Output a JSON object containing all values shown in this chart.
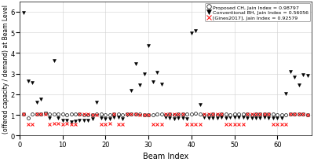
{
  "title": "",
  "xlabel": "Beam Index",
  "ylabel": "(offered capacity / demand) at Beam Level",
  "xlim": [
    0,
    68
  ],
  "ylim": [
    0,
    6.5
  ],
  "yticks": [
    0,
    1,
    2,
    3,
    4,
    5,
    6
  ],
  "xticks": [
    0,
    10,
    20,
    30,
    40,
    50,
    60
  ],
  "legend_labels": [
    "Proposed CH, Jain Index = 0.98797",
    "Conventional BH, Jain Index = 0.56056",
    "[Gines2017], Jain Index = 0.92579"
  ],
  "bh_x": [
    1,
    2,
    3,
    4,
    5,
    6,
    7,
    8,
    9,
    10,
    11,
    12,
    13,
    14,
    15,
    16,
    17,
    18,
    19,
    20,
    21,
    22,
    23,
    24,
    25,
    26,
    27,
    28,
    29,
    30,
    31,
    32,
    33,
    34,
    35,
    36,
    37,
    38,
    39,
    40,
    41,
    42,
    43,
    44,
    45,
    46,
    47,
    48,
    49,
    50,
    51,
    52,
    53,
    54,
    55,
    56,
    57,
    58,
    59,
    60,
    61,
    62,
    63,
    64,
    65,
    66,
    67
  ],
  "bh_y": [
    5.95,
    2.65,
    2.55,
    1.6,
    1.75,
    1.1,
    0.85,
    3.65,
    0.85,
    0.75,
    0.75,
    0.65,
    0.7,
    0.75,
    0.75,
    0.75,
    0.8,
    1.6,
    0.85,
    0.8,
    0.8,
    0.9,
    0.9,
    0.8,
    1.0,
    2.2,
    3.5,
    2.45,
    3.0,
    4.35,
    2.6,
    3.05,
    2.5,
    0.9,
    0.85,
    0.8,
    0.85,
    0.85,
    0.8,
    4.95,
    5.1,
    1.5,
    0.9,
    0.85,
    0.85,
    0.85,
    0.9,
    0.85,
    0.9,
    0.9,
    0.9,
    0.9,
    0.85,
    0.85,
    0.85,
    0.85,
    0.9,
    0.85,
    0.85,
    0.85,
    0.85,
    2.05,
    3.1,
    2.85,
    2.45,
    2.95,
    2.9
  ],
  "ch_x": [
    1,
    2,
    3,
    4,
    5,
    6,
    7,
    8,
    9,
    10,
    11,
    12,
    13,
    14,
    15,
    16,
    17,
    18,
    19,
    20,
    21,
    22,
    23,
    24,
    25,
    26,
    27,
    28,
    29,
    30,
    31,
    32,
    33,
    34,
    35,
    36,
    37,
    38,
    39,
    40,
    41,
    42,
    43,
    44,
    45,
    46,
    47,
    48,
    49,
    50,
    51,
    52,
    53,
    54,
    55,
    56,
    57,
    58,
    59,
    60,
    61,
    62,
    63,
    64,
    65,
    66,
    67
  ],
  "ch_y": [
    1.05,
    0.85,
    1.05,
    1.05,
    1.05,
    1.1,
    1.05,
    1.05,
    1.05,
    1.05,
    1.0,
    1.05,
    1.05,
    1.05,
    1.0,
    1.0,
    1.0,
    1.05,
    1.05,
    1.0,
    1.0,
    1.05,
    1.05,
    1.0,
    1.05,
    1.05,
    1.05,
    1.05,
    1.0,
    1.0,
    1.0,
    1.05,
    1.05,
    1.0,
    1.05,
    1.0,
    1.05,
    1.05,
    1.05,
    1.05,
    1.1,
    1.05,
    1.0,
    1.0,
    1.05,
    1.0,
    1.05,
    1.05,
    1.0,
    1.05,
    1.05,
    1.05,
    1.05,
    1.0,
    1.05,
    1.05,
    1.05,
    1.05,
    1.05,
    1.0,
    1.0,
    1.0,
    1.05,
    1.05,
    1.05,
    1.05,
    1.0
  ],
  "gines_x": [
    1,
    2,
    3,
    4,
    5,
    6,
    7,
    8,
    9,
    10,
    11,
    12,
    13,
    14,
    15,
    16,
    17,
    18,
    19,
    20,
    21,
    22,
    23,
    24,
    25,
    26,
    27,
    28,
    29,
    30,
    31,
    32,
    33,
    34,
    35,
    36,
    37,
    38,
    39,
    40,
    41,
    42,
    43,
    44,
    45,
    46,
    47,
    48,
    49,
    50,
    51,
    52,
    53,
    54,
    55,
    56,
    57,
    58,
    59,
    60,
    61,
    62,
    63,
    64,
    65,
    66,
    67
  ],
  "gines_y": [
    1.05,
    0.55,
    0.55,
    1.05,
    1.05,
    1.05,
    0.55,
    0.6,
    0.6,
    0.55,
    0.6,
    0.55,
    0.55,
    1.05,
    1.05,
    1.05,
    1.0,
    1.0,
    0.55,
    0.55,
    0.6,
    1.05,
    0.55,
    0.55,
    1.05,
    1.05,
    1.05,
    1.0,
    1.0,
    1.0,
    0.55,
    0.55,
    0.55,
    1.05,
    1.05,
    1.05,
    1.05,
    1.05,
    0.55,
    0.55,
    0.55,
    0.55,
    1.05,
    1.05,
    1.05,
    1.05,
    1.05,
    0.55,
    0.55,
    0.55,
    0.55,
    0.55,
    1.05,
    1.05,
    1.05,
    1.05,
    1.05,
    1.05,
    0.55,
    0.55,
    0.55,
    0.55,
    1.05,
    1.05,
    1.05,
    1.05,
    1.0
  ],
  "bg_color": "#ffffff",
  "marker_size_bh": 8,
  "marker_size_ch": 8,
  "marker_size_gines": 8
}
